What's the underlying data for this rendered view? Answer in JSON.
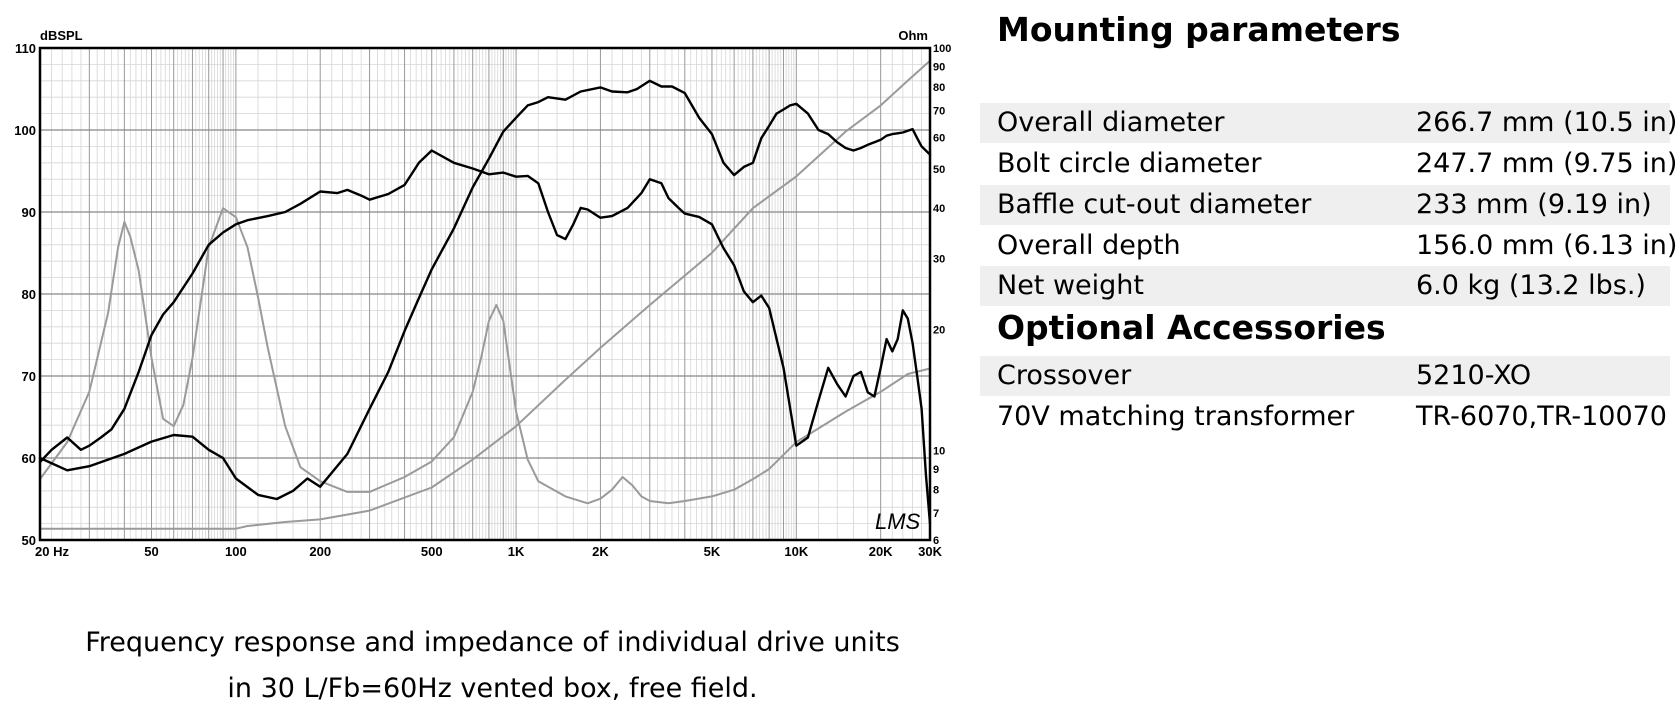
{
  "chart_data": {
    "type": "line",
    "title": "",
    "xscale": "log",
    "xlim": [
      20,
      30000
    ],
    "ylim": [
      50,
      110
    ],
    "y2lim": [
      6,
      100
    ],
    "y2scale": "log",
    "ylabel": "dBSPL",
    "y2label": "Ohm",
    "grid": true,
    "watermark": "LMS",
    "x_ticks": [
      {
        "value": 20,
        "label": "20  Hz"
      },
      {
        "value": 50,
        "label": "50"
      },
      {
        "value": 100,
        "label": "100"
      },
      {
        "value": 200,
        "label": "200"
      },
      {
        "value": 500,
        "label": "500"
      },
      {
        "value": 1000,
        "label": "1K"
      },
      {
        "value": 2000,
        "label": "2K"
      },
      {
        "value": 5000,
        "label": "5K"
      },
      {
        "value": 10000,
        "label": "10K"
      },
      {
        "value": 20000,
        "label": "20K"
      },
      {
        "value": 30000,
        "label": "30K"
      }
    ],
    "y_ticks": [
      50,
      60,
      70,
      80,
      90,
      100,
      110
    ],
    "y2_ticks": [
      6,
      7,
      8,
      9,
      10,
      20,
      30,
      40,
      50,
      60,
      70,
      80,
      90,
      100
    ],
    "series": [
      {
        "axis": "left",
        "color": "#000000",
        "x": [
          20,
          22,
          25,
          28,
          30,
          33,
          36,
          40,
          45,
          50,
          55,
          60,
          70,
          80,
          90,
          100,
          110,
          130,
          150,
          170,
          200,
          230,
          250,
          280,
          300,
          350,
          400,
          450,
          500,
          600,
          700,
          800,
          900,
          1000,
          1100,
          1200,
          1300,
          1400,
          1500,
          1600,
          1700,
          1800,
          2000,
          2200,
          2500,
          2800,
          3000,
          3300,
          3500,
          3800,
          4000,
          4500,
          5000,
          5500,
          6000,
          6500,
          7000,
          7500,
          8000,
          9000,
          10000,
          11000,
          12000,
          13000,
          14000,
          15000,
          16000,
          17000,
          18000,
          19000,
          20000,
          21000,
          22000,
          23000,
          24000,
          25000,
          26000,
          27000,
          28000,
          29000,
          30000
        ],
        "y": [
          59.5,
          61,
          62.5,
          61,
          61.5,
          62.5,
          63.5,
          66,
          70.5,
          75,
          77.5,
          79,
          82.5,
          86,
          87.5,
          88.5,
          89,
          89.5,
          90,
          91,
          92.5,
          92.3,
          92.7,
          92,
          91.5,
          92.2,
          93.3,
          96,
          97.5,
          96,
          95.3,
          94.6,
          94.8,
          94.3,
          94.4,
          93.5,
          90,
          87.2,
          86.7,
          88.5,
          90.5,
          90.3,
          89.3,
          89.5,
          90.5,
          92.3,
          94,
          93.5,
          91.7,
          90.5,
          89.8,
          89.4,
          88.5,
          85.6,
          83.5,
          80.3,
          79,
          79.8,
          78.3,
          71,
          61.5,
          62.5,
          67,
          71,
          69,
          67.5,
          70,
          70.5,
          68,
          67.5,
          71,
          74.5,
          73,
          74.5,
          78,
          77,
          74,
          70,
          66,
          58,
          52
        ]
      },
      {
        "axis": "left",
        "color": "#000000",
        "x": [
          20,
          25,
          30,
          40,
          50,
          60,
          70,
          80,
          90,
          100,
          120,
          140,
          160,
          180,
          200,
          250,
          300,
          350,
          400,
          450,
          500,
          600,
          700,
          800,
          900,
          1000,
          1100,
          1200,
          1300,
          1500,
          1700,
          2000,
          2200,
          2500,
          2700,
          3000,
          3300,
          3600,
          4000,
          4500,
          5000,
          5500,
          6000,
          6500,
          7000,
          7500,
          8000,
          8500,
          9000,
          9500,
          10000,
          11000,
          12000,
          13000,
          14000,
          15000,
          16000,
          17000,
          18000,
          19000,
          20000,
          21000,
          22000,
          23000,
          24000,
          25000,
          26000,
          27000,
          28000,
          30000
        ],
        "y": [
          60,
          58.5,
          59,
          60.5,
          62,
          62.8,
          62.6,
          61,
          60,
          57.5,
          55.5,
          55,
          56,
          57.5,
          56.5,
          60.5,
          66,
          70.5,
          75.5,
          79.5,
          83,
          88,
          93,
          96.5,
          99.8,
          101.5,
          103,
          103.4,
          104,
          103.7,
          104.7,
          105.2,
          104.7,
          104.6,
          105,
          106,
          105.3,
          105.3,
          104.5,
          101.5,
          99.5,
          96,
          94.5,
          95.5,
          96,
          99,
          100.5,
          102,
          102.5,
          103,
          103.2,
          102,
          100,
          99.5,
          98.5,
          97.8,
          97.5,
          97.8,
          98.2,
          98.5,
          98.8,
          99.3,
          99.5,
          99.6,
          99.7,
          99.9,
          100.1,
          99,
          98,
          97
        ]
      },
      {
        "axis": "right",
        "color": "#9a9a9a",
        "x": [
          20,
          25,
          30,
          35,
          38,
          40,
          42,
          45,
          50,
          55,
          60,
          65,
          70,
          80,
          90,
          100,
          110,
          120,
          130,
          150,
          170,
          200,
          250,
          300,
          400,
          500,
          600,
          700,
          750,
          800,
          850,
          900,
          1000,
          1100,
          1200,
          1500,
          1800,
          2000,
          2200,
          2400,
          2600,
          2800,
          3000,
          3500,
          4000,
          5000,
          6000,
          7000,
          8000,
          10000,
          15000,
          20000,
          25000,
          30000
        ],
        "y": [
          8.5,
          10.5,
          14,
          22,
          32,
          37,
          34,
          28,
          17,
          12,
          11.5,
          13,
          17,
          32,
          40,
          38,
          32,
          24,
          18,
          11.5,
          9.1,
          8.4,
          7.9,
          7.9,
          8.6,
          9.4,
          10.8,
          14,
          17,
          21,
          23,
          21,
          12.5,
          9.5,
          8.4,
          7.7,
          7.4,
          7.6,
          8,
          8.6,
          8.2,
          7.7,
          7.5,
          7.4,
          7.5,
          7.7,
          8,
          8.5,
          9,
          10.5,
          12.5,
          14,
          15.5,
          16
        ]
      },
      {
        "axis": "right",
        "color": "#9a9a9a",
        "x": [
          20,
          50,
          100,
          110,
          150,
          200,
          300,
          500,
          700,
          1000,
          1500,
          2000,
          3000,
          5000,
          7000,
          10000,
          15000,
          20000,
          25000,
          30000
        ],
        "y": [
          6.4,
          6.4,
          6.4,
          6.5,
          6.65,
          6.75,
          7.1,
          8.1,
          9.5,
          11.5,
          15,
          18,
          23,
          31,
          40,
          48,
          62,
          72,
          83,
          93
        ]
      }
    ]
  },
  "caption": {
    "line1": "Frequency response and impedance of individual drive units",
    "line2": "in 30 L/Fb=60Hz vented box, free field."
  },
  "mounting": {
    "title": "Mounting parameters",
    "rows": [
      {
        "label": "Overall diameter",
        "value": "266.7 mm (10.5 in)"
      },
      {
        "label": "Bolt circle diameter",
        "value": "247.7 mm (9.75 in)"
      },
      {
        "label": "Baffle cut-out diameter",
        "value": "233 mm (9.19 in)"
      },
      {
        "label": "Overall depth",
        "value": "156.0 mm (6.13 in)"
      },
      {
        "label": "Net weight",
        "value": " 6.0 kg (13.2 lbs.)"
      }
    ]
  },
  "accessories": {
    "title": "Optional Accessories",
    "rows": [
      {
        "label": "Crossover",
        "value": "5210-XO"
      },
      {
        "label": "70V matching transformer",
        "value": "TR-6070,TR-10070"
      }
    ]
  }
}
